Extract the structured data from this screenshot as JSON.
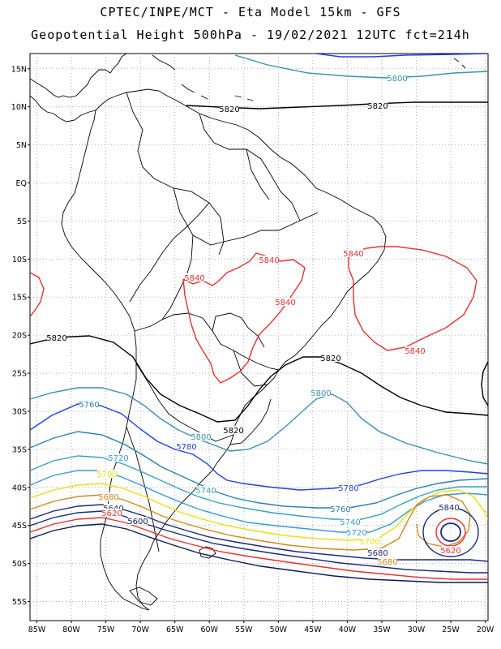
{
  "header": {
    "title_line1": "CPTEC/INPE/MCT -  Eta Model 15km - GFS",
    "title_line2": "Geopotential Height 500hPa - 19/02/2021 12UTC fct=214h"
  },
  "map": {
    "lat_ticks": [
      "15N",
      "10N",
      "5N",
      "EQ",
      "5S",
      "10S",
      "15S",
      "20S",
      "25S",
      "30S",
      "35S",
      "40S",
      "45S",
      "50S",
      "55S"
    ],
    "lon_ticks": [
      "85W",
      "80W",
      "75W",
      "70W",
      "65W",
      "60W",
      "55W",
      "50W",
      "45W",
      "40W",
      "35W",
      "30W",
      "25W",
      "20W"
    ],
    "contour_colors": {
      "5580": "#1a1a6b",
      "5600": "#0a1a5a",
      "5620": "#e83030",
      "5640": "#1a2a80",
      "5660": "#d08a1a",
      "5680": "#1a2a80",
      "5700": "#e8e010",
      "5720": "#3a9ad0",
      "5740": "#3aa0c0",
      "5760": "#2a80b0",
      "5780": "#2040e0",
      "5800": "#3a90b0",
      "5820": "#000000",
      "5840": "#e83030"
    },
    "labels": [
      {
        "text": "5800",
        "color": "#3a90b0"
      },
      {
        "text": "5820",
        "color": "#000000"
      },
      {
        "text": "5820",
        "color": "#000000"
      },
      {
        "text": "5820",
        "color": "#000000"
      },
      {
        "text": "5820",
        "color": "#000000"
      },
      {
        "text": "5820",
        "color": "#000000"
      },
      {
        "text": "5840",
        "color": "#e83030"
      },
      {
        "text": "5840",
        "color": "#e83030"
      },
      {
        "text": "5840",
        "color": "#e83030"
      },
      {
        "text": "5840",
        "color": "#e83030"
      },
      {
        "text": "5840",
        "color": "#e83030"
      },
      {
        "text": "5800",
        "color": "#3a90b0"
      },
      {
        "text": "5760",
        "color": "#2a80b0"
      },
      {
        "text": "5800",
        "color": "#3a90b0"
      },
      {
        "text": "5780",
        "color": "#2040e0"
      },
      {
        "text": "5720",
        "color": "#3a9ad0"
      },
      {
        "text": "5700",
        "color": "#e8e010"
      },
      {
        "text": "5680",
        "color": "#d08a1a"
      },
      {
        "text": "5740",
        "color": "#3aa0c0"
      },
      {
        "text": "5640",
        "color": "#1a2a80"
      },
      {
        "text": "5620",
        "color": "#e83030"
      },
      {
        "text": "5600",
        "color": "#0a1a5a"
      },
      {
        "text": "5780",
        "color": "#2040e0"
      },
      {
        "text": "5760",
        "color": "#2a80b0"
      },
      {
        "text": "5740",
        "color": "#3aa0c0"
      },
      {
        "text": "5720",
        "color": "#3a9ad0"
      },
      {
        "text": "5700",
        "color": "#e8e010"
      },
      {
        "text": "5680",
        "color": "#1a2a80"
      },
      {
        "text": "5680",
        "color": "#d08a1a"
      },
      {
        "text": "5840",
        "color": "#1a2a80"
      },
      {
        "text": "5620",
        "color": "#e83030"
      }
    ]
  }
}
